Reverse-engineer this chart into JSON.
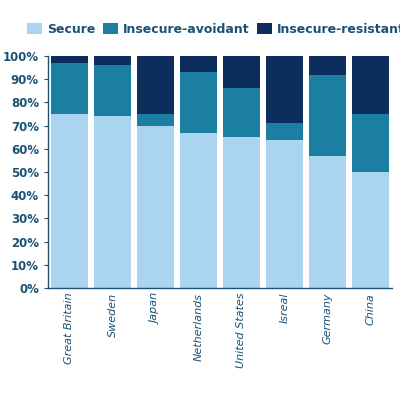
{
  "categories": [
    "Great Britain",
    "Sweden",
    "Japan",
    "Netherlands",
    "United States",
    "Isreal",
    "Germany",
    "China"
  ],
  "secure": [
    75,
    74,
    70,
    67,
    65,
    64,
    57,
    50
  ],
  "insecure_avoidant": [
    22,
    22,
    5,
    26,
    21,
    7,
    35,
    25
  ],
  "insecure_resistant": [
    3,
    4,
    25,
    7,
    14,
    29,
    8,
    25
  ],
  "color_secure": "#aad4f0",
  "color_avoidant": "#1a7fa0",
  "color_resistant": "#0d2d5c",
  "legend_labels": [
    "Secure",
    "Insecure-avoidant",
    "Insecure-resistant"
  ],
  "ylabel_ticks": [
    0,
    10,
    20,
    30,
    40,
    50,
    60,
    70,
    80,
    90,
    100
  ],
  "background_color": "#ffffff",
  "axis_color": "#1a5276",
  "bar_width": 0.85,
  "legend_fontsize": 9,
  "tick_fontsize": 8.5,
  "xtick_fontsize": 8
}
